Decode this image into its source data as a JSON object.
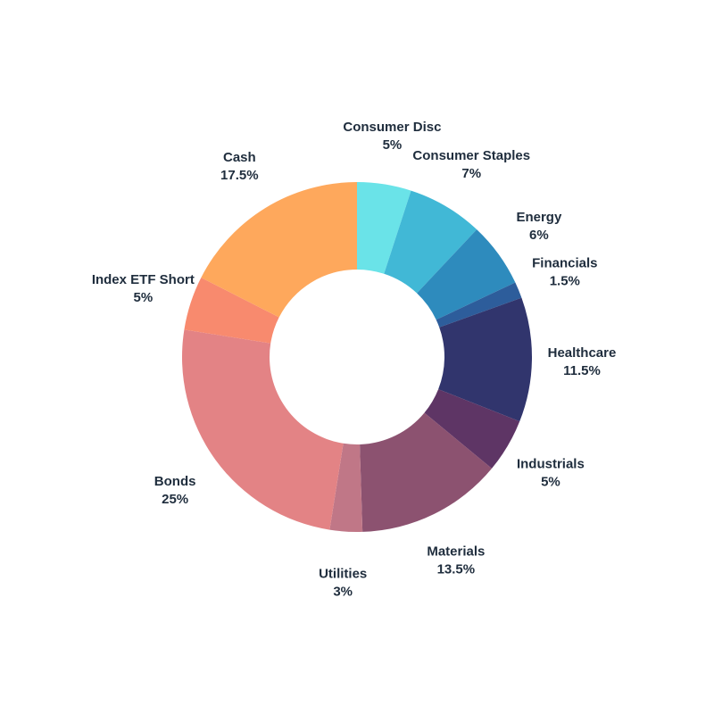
{
  "chart_data": {
    "type": "pie",
    "subtype": "donut",
    "title": "",
    "slices": [
      {
        "label": "Consumer Disc",
        "value": 5,
        "value_label": "5%",
        "color": "#6ae3e8"
      },
      {
        "label": "Consumer Staples",
        "value": 7,
        "value_label": "7%",
        "color": "#41b8d6"
      },
      {
        "label": "Energy",
        "value": 6,
        "value_label": "6%",
        "color": "#2e8bbd"
      },
      {
        "label": "Financials",
        "value": 1.5,
        "value_label": "1.5%",
        "color": "#2d5d9b"
      },
      {
        "label": "Healthcare",
        "value": 11.5,
        "value_label": "11.5%",
        "color": "#31356d"
      },
      {
        "label": "Industrials",
        "value": 5,
        "value_label": "5%",
        "color": "#5e3565"
      },
      {
        "label": "Materials",
        "value": 13.5,
        "value_label": "13.5%",
        "color": "#8c5270"
      },
      {
        "label": "Utilities",
        "value": 3,
        "value_label": "3%",
        "color": "#c07787"
      },
      {
        "label": "Bonds",
        "value": 25,
        "value_label": "25%",
        "color": "#e38385"
      },
      {
        "label": "Index ETF Short",
        "value": 5,
        "value_label": "5%",
        "color": "#f88a6e"
      },
      {
        "label": "Cash",
        "value": 17.5,
        "value_label": "17.5%",
        "color": "#fea85c"
      }
    ],
    "start_angle": "12 o'clock",
    "direction": "clockwise",
    "legend": "none",
    "label_placement": "outside"
  }
}
